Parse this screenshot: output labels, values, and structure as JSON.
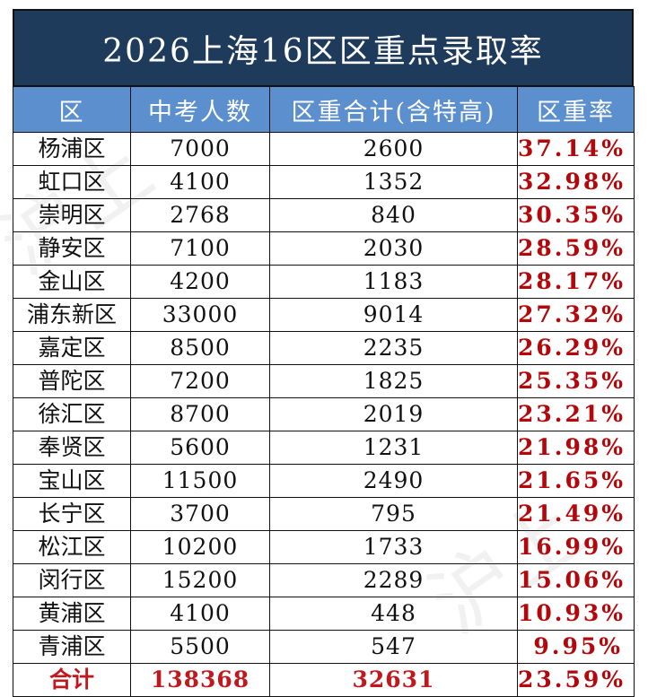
{
  "title": "2026上海16区区重点录取率",
  "headers": [
    "区",
    "中考人数",
    "区重合计(含特高)",
    "区重率"
  ],
  "rows": [
    {
      "district": "杨浦区",
      "examinees": "7000",
      "admitted": "2600",
      "rate": "37.14%"
    },
    {
      "district": "虹口区",
      "examinees": "4100",
      "admitted": "1352",
      "rate": "32.98%"
    },
    {
      "district": "崇明区",
      "examinees": "2768",
      "admitted": "840",
      "rate": "30.35%"
    },
    {
      "district": "静安区",
      "examinees": "7100",
      "admitted": "2030",
      "rate": "28.59%"
    },
    {
      "district": "金山区",
      "examinees": "4200",
      "admitted": "1183",
      "rate": "28.17%"
    },
    {
      "district": "浦东新区",
      "examinees": "33000",
      "admitted": "9014",
      "rate": "27.32%"
    },
    {
      "district": "嘉定区",
      "examinees": "8500",
      "admitted": "2235",
      "rate": "26.29%"
    },
    {
      "district": "普陀区",
      "examinees": "7200",
      "admitted": "1825",
      "rate": "25.35%"
    },
    {
      "district": "徐汇区",
      "examinees": "8700",
      "admitted": "2019",
      "rate": "23.21%"
    },
    {
      "district": "奉贤区",
      "examinees": "5600",
      "admitted": "1231",
      "rate": "21.98%"
    },
    {
      "district": "宝山区",
      "examinees": "11500",
      "admitted": "2490",
      "rate": "21.65%"
    },
    {
      "district": "长宁区",
      "examinees": "3700",
      "admitted": "795",
      "rate": "21.49%"
    },
    {
      "district": "松江区",
      "examinees": "10200",
      "admitted": "1733",
      "rate": "16.99%"
    },
    {
      "district": "闵行区",
      "examinees": "15200",
      "admitted": "2289",
      "rate": "15.06%"
    },
    {
      "district": "黄浦区",
      "examinees": "4100",
      "admitted": "448",
      "rate": "10.93%"
    },
    {
      "district": "青浦区",
      "examinees": "5500",
      "admitted": "547",
      "rate": "9.95%"
    }
  ],
  "total": {
    "district": "合计",
    "examinees": "138368",
    "admitted": "32631",
    "rate": "23.59%"
  },
  "watermark": "沪上",
  "colors": {
    "title_bg": "#1f3b5c",
    "header_bg": "#5b8fcd",
    "rate_text": "#b3070b"
  }
}
